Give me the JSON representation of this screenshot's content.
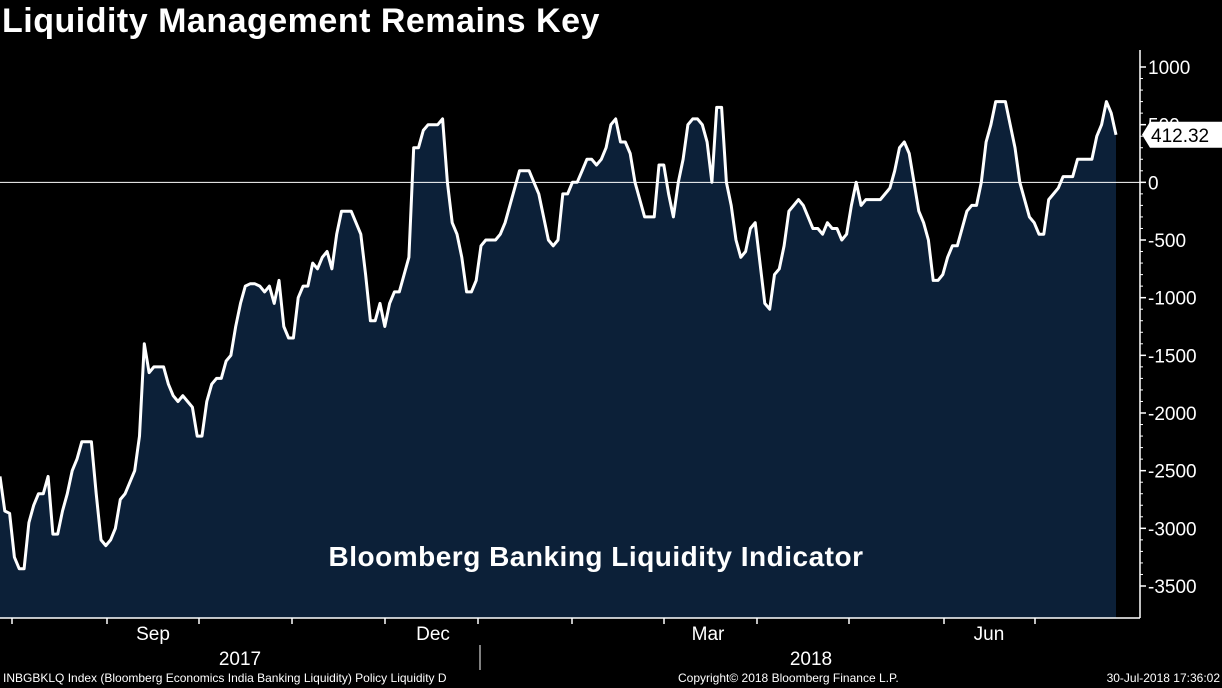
{
  "title": "Liquidity Management Remains Key",
  "chart_data": {
    "type": "area",
    "annotation": "Bloomberg Banking Liquidity Indicator",
    "last_value_label": "412.32",
    "y_ticks": [
      1000,
      500,
      0,
      -500,
      -1000,
      -1500,
      -2000,
      -2500,
      -3000,
      -3500
    ],
    "y_tick_labels": [
      "1000",
      "500",
      "0",
      "-500",
      "-1000",
      "-1500",
      "-2000",
      "-2500",
      "-3000",
      "-3500"
    ],
    "ylim": [
      -3800,
      1120
    ],
    "x_month_labels": [
      "Sep",
      "Dec",
      "Mar",
      "Jun"
    ],
    "x_year_labels": [
      "2017",
      "2018"
    ],
    "colors": {
      "area": "#0c2038",
      "line": "#ffffff",
      "background": "#000000"
    },
    "series": [
      {
        "values": [
          -2550,
          -2850,
          -2870,
          -3250,
          -3350,
          -3350,
          -2950,
          -2800,
          -2700,
          -2700,
          -2550,
          -3050,
          -3050,
          -2850,
          -2700,
          -2500,
          -2400,
          -2250,
          -2250,
          -2250,
          -2700,
          -3100,
          -3150,
          -3100,
          -3000,
          -2750,
          -2700,
          -2600,
          -2500,
          -2200,
          -1400,
          -1650,
          -1600,
          -1600,
          -1600,
          -1750,
          -1850,
          -1900,
          -1850,
          -1900,
          -1950,
          -2200,
          -2200,
          -1900,
          -1750,
          -1700,
          -1700,
          -1550,
          -1500,
          -1250,
          -1050,
          -900,
          -880,
          -880,
          -900,
          -950,
          -900,
          -1050,
          -850,
          -1250,
          -1350,
          -1350,
          -1000,
          -900,
          -900,
          -700,
          -750,
          -650,
          -600,
          -750,
          -450,
          -250,
          -250,
          -250,
          -350,
          -450,
          -800,
          -1200,
          -1200,
          -1050,
          -1250,
          -1050,
          -950,
          -950,
          -800,
          -650,
          300,
          300,
          450,
          500,
          500,
          500,
          550,
          0,
          -350,
          -450,
          -650,
          -950,
          -950,
          -850,
          -550,
          -500,
          -500,
          -500,
          -450,
          -350,
          -200,
          -50,
          100,
          100,
          100,
          0,
          -100,
          -300,
          -500,
          -550,
          -500,
          -100,
          -100,
          0,
          0,
          100,
          200,
          200,
          150,
          200,
          300,
          500,
          550,
          350,
          350,
          250,
          0,
          -150,
          -300,
          -300,
          -300,
          150,
          150,
          -100,
          -300,
          0,
          200,
          500,
          550,
          550,
          500,
          350,
          0,
          650,
          650,
          0,
          -200,
          -500,
          -650,
          -600,
          -400,
          -350,
          -700,
          -1050,
          -1100,
          -800,
          -750,
          -550,
          -250,
          -200,
          -150,
          -200,
          -300,
          -400,
          -400,
          -450,
          -350,
          -400,
          -400,
          -500,
          -450,
          -200,
          0,
          -200,
          -150,
          -150,
          -150,
          -150,
          -100,
          -50,
          100,
          300,
          350,
          250,
          0,
          -250,
          -350,
          -500,
          -850,
          -850,
          -800,
          -650,
          -550,
          -550,
          -400,
          -250,
          -200,
          -200,
          0,
          350,
          500,
          700,
          700,
          700,
          500,
          300,
          0,
          -150,
          -300,
          -350,
          -450,
          -450,
          -150,
          -100,
          -50,
          50,
          50,
          50,
          200,
          200,
          200,
          200,
          400,
          500,
          700,
          600,
          412.32
        ]
      }
    ]
  },
  "footer": {
    "left": "INBGBKLQ Index (Bloomberg Economics India Banking Liquidity) Policy Liquidity  D",
    "center": "Copyright© 2018 Bloomberg Finance L.P.",
    "right": "30-Jul-2018 17:36:02"
  }
}
